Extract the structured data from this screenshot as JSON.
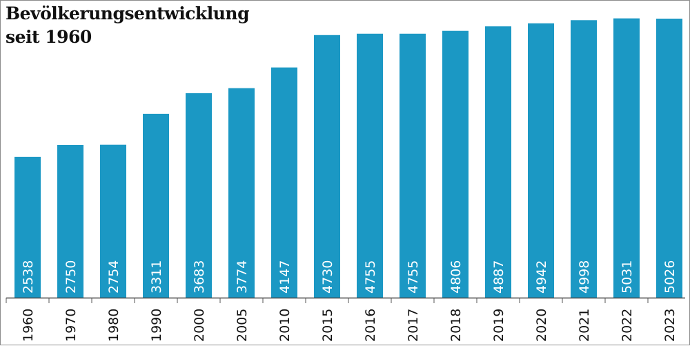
{
  "chart_data": {
    "type": "bar",
    "title": "Bevölkerungsentwicklung",
    "subtitle": "seit 1960",
    "xlabel": "",
    "ylabel": "",
    "ylim": [
      0,
      5250
    ],
    "grid": false,
    "legend": "none",
    "bar_color": "#1b98c4",
    "categories": [
      "1960",
      "1970",
      "1980",
      "1990",
      "2000",
      "2005",
      "2010",
      "2015",
      "2016",
      "2017",
      "2018",
      "2019",
      "2020",
      "2021",
      "2022",
      "2023"
    ],
    "values": [
      2538,
      2750,
      2754,
      3311,
      3683,
      3774,
      4147,
      4730,
      4755,
      4755,
      4806,
      4887,
      4942,
      4998,
      5031,
      5026
    ],
    "value_labels": [
      "2538",
      "2750",
      "2754",
      "3311",
      "3683",
      "3774",
      "4147",
      "4730",
      "4755",
      "4755",
      "4806",
      "4887",
      "4942",
      "4998",
      "5031",
      "5026"
    ]
  }
}
